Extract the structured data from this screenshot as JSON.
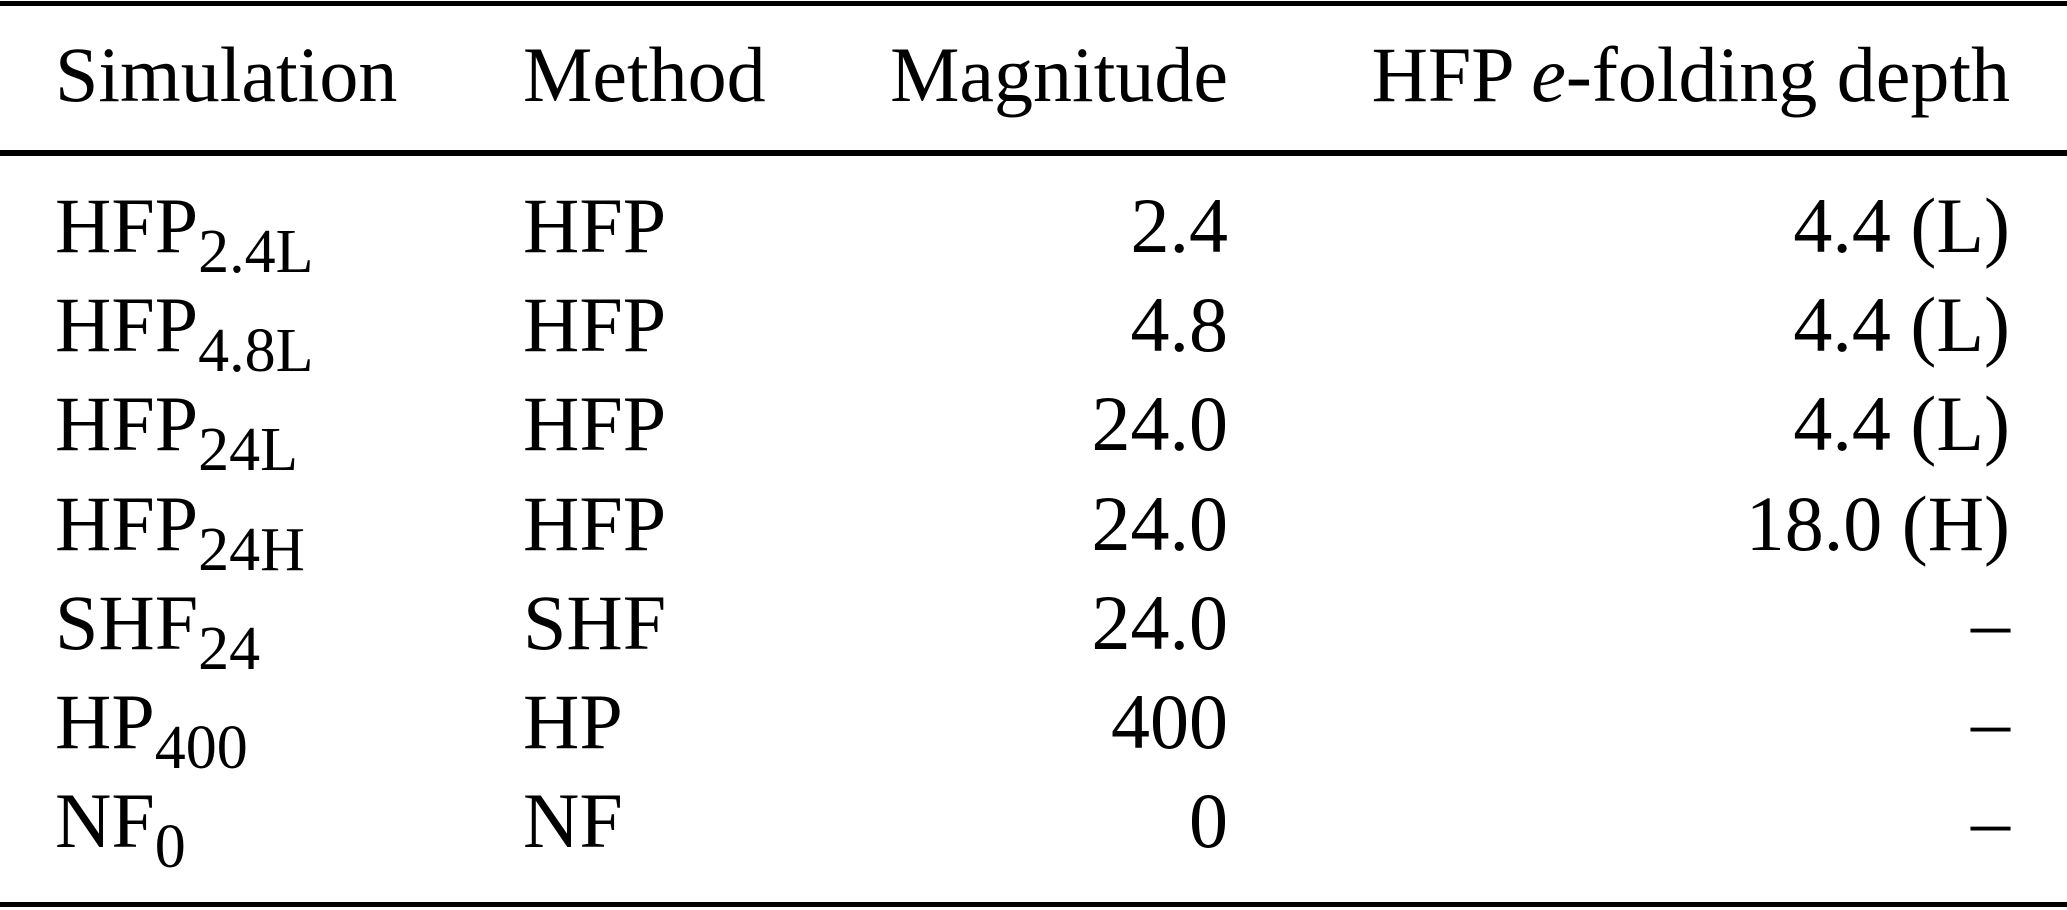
{
  "page": {
    "background_color": "#ffffff",
    "text_color": "#000000",
    "rule_color": "#000000"
  },
  "table": {
    "header": {
      "simulation": "Simulation",
      "method": "Method",
      "magnitude": "Magnitude",
      "depth": {
        "prefix": "HFP ",
        "italic": "e",
        "suffix": "-folding depth"
      }
    },
    "rows": [
      {
        "sim_base": "HFP",
        "sim_sub": "2.4L",
        "method": "HFP",
        "magnitude": "2.4",
        "depth": "4.4 (L)"
      },
      {
        "sim_base": "HFP",
        "sim_sub": "4.8L",
        "method": "HFP",
        "magnitude": "4.8",
        "depth": "4.4 (L)"
      },
      {
        "sim_base": "HFP",
        "sim_sub": "24L",
        "method": "HFP",
        "magnitude": "24.0",
        "depth": "4.4 (L)"
      },
      {
        "sim_base": "HFP",
        "sim_sub": "24H",
        "method": "HFP",
        "magnitude": "24.0",
        "depth": "18.0 (H)"
      },
      {
        "sim_base": "SHF",
        "sim_sub": "24",
        "method": "SHF",
        "magnitude": "24.0",
        "depth": "–"
      },
      {
        "sim_base": "HP",
        "sim_sub": "400",
        "method": "HP",
        "magnitude": "400",
        "depth": "–"
      },
      {
        "sim_base": "NF",
        "sim_sub": "0",
        "method": "NF",
        "magnitude": "0",
        "depth": "–"
      }
    ]
  }
}
